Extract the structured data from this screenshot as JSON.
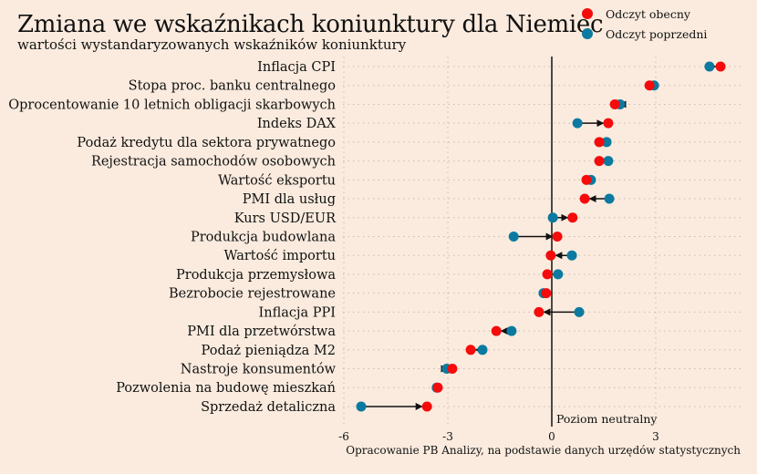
{
  "title": "Zmiana we wskaźnikach koniunktury dla Niemiec",
  "subtitle": "wartości wystandaryzowanych wskaźników koniunktury",
  "legend": [
    {
      "label": "Odczyt obecny",
      "color": "#f50b0b"
    },
    {
      "label": "Odczyt poprzedni",
      "color": "#0c7aa0"
    }
  ],
  "caption": "Opracowanie PB Analizy, na podstawie danych urzędów statystycznych",
  "chart_data": {
    "type": "dumbbell",
    "title": "Zmiana we wskaźnikach koniunktury dla Niemiec",
    "subtitle": "wartości wystandaryzowanych wskaźników koniunktury",
    "xlim": [
      -6,
      5.5
    ],
    "xticks": [
      -6,
      -3,
      0,
      3
    ],
    "xtick_labels": [
      "-6",
      "-3",
      "0",
      "3"
    ],
    "grid": true,
    "reference_line": {
      "x": 0,
      "label": "Poziom neutralny"
    },
    "legend_position": "top-right",
    "categories": [
      "Inflacja CPI",
      "Stopa proc. banku centralnego",
      "Oprocentowanie 10 letnich obligacji skarbowych",
      "Indeks DAX",
      "Podaż kredytu dla sektora prywatnego",
      "Rejestracja samochodów osobowych",
      "Wartość eksportu",
      "PMI dla usług",
      "Kurs USD/EUR",
      "Produkcja budowlana",
      "Wartość importu",
      "Produkcja przemysłowa",
      "Bezrobocie rejestrowane",
      "Inflacja PPI",
      "PMI dla przetwórstwa",
      "Podaż pieniądza M2",
      "Nastroje konsumentów",
      "Pozwolenia na budowę mieszkań",
      "Sprzedaż detaliczna"
    ],
    "series": [
      {
        "name": "Odczyt obecny",
        "color": "#f50b0b",
        "values": [
          4.87,
          2.82,
          1.82,
          1.63,
          1.37,
          1.37,
          1.0,
          0.95,
          0.6,
          0.16,
          -0.03,
          -0.13,
          -0.16,
          -0.37,
          -1.6,
          -2.34,
          -2.87,
          -3.29,
          -3.6
        ]
      },
      {
        "name": "Odczyt poprzedni",
        "color": "#0c7aa0",
        "values": [
          4.55,
          2.95,
          1.97,
          0.74,
          1.58,
          1.63,
          1.13,
          1.66,
          0.03,
          -1.1,
          0.58,
          0.18,
          -0.24,
          0.79,
          -1.16,
          -2.0,
          -3.03,
          -3.32,
          -5.5
        ]
      }
    ]
  }
}
